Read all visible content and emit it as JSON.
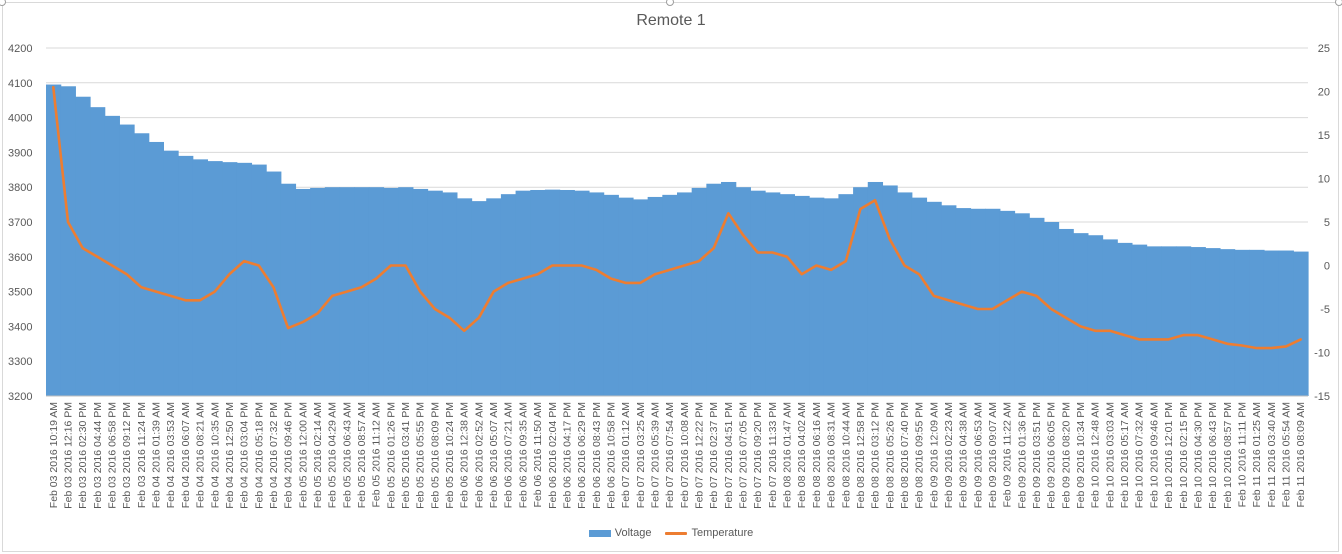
{
  "chart_data": {
    "type": "bar+line",
    "title": "Remote 1",
    "y_left": {
      "ylim": [
        3200,
        4200
      ],
      "ticks": [
        3200,
        3300,
        3400,
        3500,
        3600,
        3700,
        3800,
        3900,
        4000,
        4100,
        4200
      ]
    },
    "y_right": {
      "ylim": [
        -15,
        25
      ],
      "ticks": [
        -15,
        -10,
        -5,
        0,
        5,
        10,
        15,
        20,
        25
      ]
    },
    "grid": true,
    "legend_position": "bottom",
    "categories": [
      "Feb 03 2016 10:19 AM",
      "Feb 03 2016 12:16 PM",
      "Feb 03 2016 02:30 PM",
      "Feb 03 2016 04:44 PM",
      "Feb 03 2016 06:58 PM",
      "Feb 03 2016 09:12 PM",
      "Feb 03 2016 11:24 PM",
      "Feb 04 2016 01:39 AM",
      "Feb 04 2016 03:53 AM",
      "Feb 04 2016 06:07 AM",
      "Feb 04 2016 08:21 AM",
      "Feb 04 2016 10:35 AM",
      "Feb 04 2016 12:50 PM",
      "Feb 04 2016 03:04 PM",
      "Feb 04 2016 05:18 PM",
      "Feb 04 2016 07:32 PM",
      "Feb 04 2016 09:46 PM",
      "Feb 05 2016 12:00 AM",
      "Feb 05 2016 02:14 AM",
      "Feb 05 2016 04:29 AM",
      "Feb 05 2016 06:43 AM",
      "Feb 05 2016 08:57 AM",
      "Feb 05 2016 11:12 AM",
      "Feb 05 2016 01:26 PM",
      "Feb 05 2016 03:41 PM",
      "Feb 05 2016 05:55 PM",
      "Feb 05 2016 08:09 PM",
      "Feb 05 2016 10:24 PM",
      "Feb 06 2016 12:38 AM",
      "Feb 06 2016 02:52 AM",
      "Feb 06 2016 05:07 AM",
      "Feb 06 2016 07:21 AM",
      "Feb 06 2016 09:35 AM",
      "Feb 06 2016 11:50 AM",
      "Feb 06 2016 02:04 PM",
      "Feb 06 2016 04:17 PM",
      "Feb 06 2016 06:29 PM",
      "Feb 06 2016 08:43 PM",
      "Feb 06 2016 10:58 PM",
      "Feb 07 2016 01:12 AM",
      "Feb 07 2016 03:25 AM",
      "Feb 07 2016 05:39 AM",
      "Feb 07 2016 07:54 AM",
      "Feb 07 2016 10:08 AM",
      "Feb 07 2016 12:22 PM",
      "Feb 07 2016 02:37 PM",
      "Feb 07 2016 04:51 PM",
      "Feb 07 2016 07:05 PM",
      "Feb 07 2016 09:20 PM",
      "Feb 07 2016 11:33 PM",
      "Feb 08 2016 01:47 AM",
      "Feb 08 2016 04:02 AM",
      "Feb 08 2016 06:16 AM",
      "Feb 08 2016 08:31 AM",
      "Feb 08 2016 10:44 AM",
      "Feb 08 2016 12:58 PM",
      "Feb 08 2016 03:12 PM",
      "Feb 08 2016 05:26 PM",
      "Feb 08 2016 07:40 PM",
      "Feb 08 2016 09:55 PM",
      "Feb 09 2016 12:09 AM",
      "Feb 09 2016 02:23 AM",
      "Feb 09 2016 04:38 AM",
      "Feb 09 2016 06:53 AM",
      "Feb 09 2016 09:07 AM",
      "Feb 09 2016 11:22 AM",
      "Feb 09 2016 01:36 PM",
      "Feb 09 2016 03:51 PM",
      "Feb 09 2016 06:05 PM",
      "Feb 09 2016 08:20 PM",
      "Feb 09 2016 10:34 PM",
      "Feb 10 2016 12:48 AM",
      "Feb 10 2016 03:03 AM",
      "Feb 10 2016 05:17 AM",
      "Feb 10 2016 07:32 AM",
      "Feb 10 2016 09:46 AM",
      "Feb 10 2016 12:01 PM",
      "Feb 10 2016 02:15 PM",
      "Feb 10 2016 04:30 PM",
      "Feb 10 2016 06:43 PM",
      "Feb 10 2016 08:57 PM",
      "Feb 10 2016 11:11 PM",
      "Feb 11 2016 01:25 AM",
      "Feb 11 2016 03:40 AM",
      "Feb 11 2016 05:54 AM",
      "Feb 11 2016 08:09 AM"
    ],
    "series": [
      {
        "name": "Voltage",
        "type": "bar",
        "axis": "left",
        "color": "#5b9bd5",
        "values": [
          4095,
          4090,
          4060,
          4030,
          4005,
          3980,
          3955,
          3930,
          3905,
          3890,
          3880,
          3875,
          3872,
          3870,
          3865,
          3845,
          3810,
          3795,
          3798,
          3800,
          3800,
          3800,
          3800,
          3798,
          3800,
          3795,
          3790,
          3785,
          3768,
          3760,
          3768,
          3780,
          3790,
          3792,
          3793,
          3792,
          3790,
          3785,
          3778,
          3770,
          3765,
          3772,
          3778,
          3785,
          3798,
          3810,
          3815,
          3800,
          3790,
          3785,
          3780,
          3775,
          3770,
          3768,
          3780,
          3800,
          3815,
          3805,
          3785,
          3770,
          3758,
          3748,
          3740,
          3738,
          3738,
          3732,
          3725,
          3712,
          3700,
          3680,
          3668,
          3662,
          3650,
          3640,
          3635,
          3630,
          3630,
          3630,
          3628,
          3625,
          3622,
          3620,
          3620,
          3618,
          3618,
          3615
        ]
      },
      {
        "name": "Temperature",
        "type": "line",
        "axis": "right",
        "color": "#ed7d31",
        "values": [
          20.5,
          5.0,
          2.0,
          1.0,
          0.0,
          -1.0,
          -2.5,
          -3.0,
          -3.5,
          -4.0,
          -4.0,
          -3.0,
          -1.0,
          0.5,
          0.0,
          -2.5,
          -7.2,
          -6.5,
          -5.5,
          -3.5,
          -3.0,
          -2.5,
          -1.5,
          0.0,
          0.0,
          -3.0,
          -5.0,
          -6.0,
          -7.5,
          -6.0,
          -3.0,
          -2.0,
          -1.5,
          -1.0,
          0.0,
          0.0,
          0.0,
          -0.5,
          -1.5,
          -2.0,
          -2.0,
          -1.0,
          -0.5,
          0.0,
          0.5,
          2.0,
          6.0,
          3.5,
          1.5,
          1.5,
          1.0,
          -1.0,
          0.0,
          -0.5,
          0.5,
          6.5,
          7.5,
          3.0,
          0.0,
          -1.0,
          -3.5,
          -4.0,
          -4.5,
          -5.0,
          -5.0,
          -4.0,
          -3.0,
          -3.5,
          -5.0,
          -6.0,
          -7.0,
          -7.5,
          -7.5,
          -8.0,
          -8.5,
          -8.5,
          -8.5,
          -8.0,
          -8.0,
          -8.5,
          -9.0,
          -9.2,
          -9.5,
          -9.5,
          -9.3,
          -8.5
        ]
      }
    ]
  }
}
